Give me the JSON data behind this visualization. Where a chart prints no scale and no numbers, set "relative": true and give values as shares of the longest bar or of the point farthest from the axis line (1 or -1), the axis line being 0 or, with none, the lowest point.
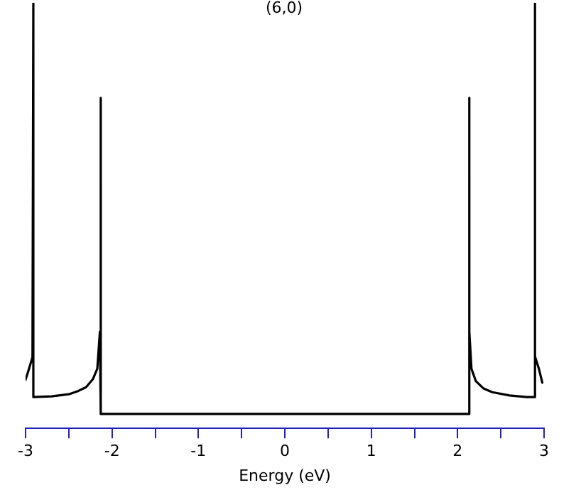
{
  "chart_data": {
    "type": "line",
    "title": "(6,0)",
    "xlabel": "Energy (eV)",
    "relative": true,
    "marker": "none",
    "line_style": "solid",
    "xlim": [
      -3,
      3
    ],
    "xticks": [
      -3,
      {
        "value": -2.5,
        "label": null
      },
      -2,
      {
        "value": -1.5,
        "label": null
      },
      -1,
      {
        "value": -0.5,
        "label": null
      },
      0,
      {
        "value": 0.5,
        "label": null
      },
      1,
      {
        "value": 1.5,
        "label": null
      },
      2,
      {
        "value": 2.5,
        "label": null
      },
      3
    ],
    "series": [
      {
        "color": "#000000",
        "x": [
          -3.0,
          -2.96,
          -2.92,
          -2.91,
          -2.91,
          -2.7,
          -2.5,
          -2.4,
          -2.3,
          -2.22,
          -2.17,
          -2.14,
          -2.13,
          -2.13,
          2.13,
          2.13,
          2.14,
          2.16,
          2.21,
          2.3,
          2.4,
          2.6,
          2.8,
          2.89,
          2.89,
          2.9,
          2.94,
          2.98
        ],
        "values": [
          0.083,
          0.11,
          0.138,
          1,
          0.041,
          0.043,
          0.048,
          0.055,
          0.065,
          0.085,
          0.11,
          0.2,
          0.769,
          0,
          0,
          0.769,
          0.2,
          0.11,
          0.08,
          0.062,
          0.053,
          0.045,
          0.041,
          0.041,
          1,
          0.14,
          0.11,
          0.076
        ]
      }
    ]
  }
}
